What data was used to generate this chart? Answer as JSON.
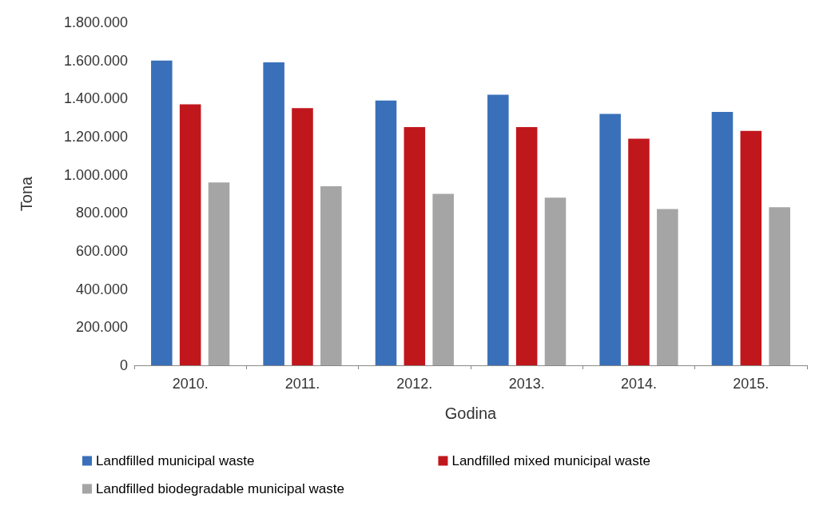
{
  "chart_data": {
    "type": "bar",
    "xlabel": "Godina",
    "ylabel": "Tona",
    "categories": [
      "2010.",
      "2011.",
      "2012.",
      "2013.",
      "2014.",
      "2015."
    ],
    "series": [
      {
        "name": "Landfilled municipal waste",
        "color": "#3a70b9",
        "values": [
          1600000,
          1590000,
          1390000,
          1420000,
          1320000,
          1330000
        ]
      },
      {
        "name": "Landfilled mixed municipal waste",
        "color": "#c0171c",
        "values": [
          1370000,
          1350000,
          1250000,
          1250000,
          1190000,
          1230000
        ]
      },
      {
        "name": "Landfilled biodegradable municipal waste",
        "color": "#a5a5a5",
        "values": [
          960000,
          940000,
          900000,
          880000,
          820000,
          830000
        ]
      }
    ],
    "ylim": [
      0,
      1800000
    ],
    "yticks": [
      {
        "value": 0,
        "label": "0"
      },
      {
        "value": 200000,
        "label": "200.000"
      },
      {
        "value": 400000,
        "label": "400.000"
      },
      {
        "value": 600000,
        "label": "600.000"
      },
      {
        "value": 800000,
        "label": "800.000"
      },
      {
        "value": 1000000,
        "label": "1.000.000"
      },
      {
        "value": 1200000,
        "label": "1.200.000"
      },
      {
        "value": 1400000,
        "label": "1.400.000"
      },
      {
        "value": 1600000,
        "label": "1.600.000"
      },
      {
        "value": 1800000,
        "label": "1.800.000"
      }
    ],
    "grid": false,
    "legend": "bottom"
  }
}
